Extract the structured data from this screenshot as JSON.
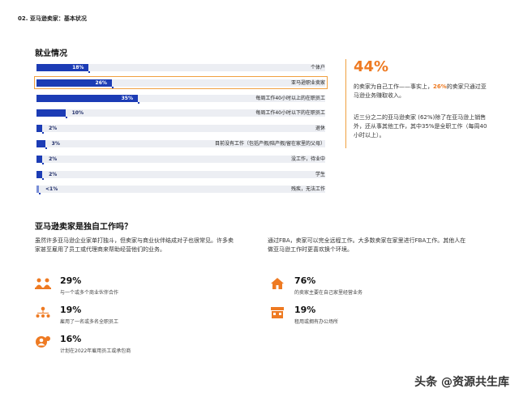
{
  "header": {
    "section": "02. 亚马逊卖家：基本状况"
  },
  "chart": {
    "title": "就业情况"
  },
  "chart_data": {
    "type": "bar",
    "orientation": "horizontal",
    "title": "就业情况",
    "categories": [
      "个体户",
      "亚马逊职业卖家",
      "每周工作40小时以上的在职员工",
      "每周工作40小时以下的在职员工",
      "退休",
      "目前没有工作（包括产假/陪产假/留在家里的父母）",
      "没工作，待业中",
      "学生",
      "残疾，无法工作"
    ],
    "value_labels": [
      "18%",
      "26%",
      "35%",
      "10%",
      "2%",
      "3%",
      "2%",
      "2%",
      "<1%"
    ],
    "values": [
      18,
      26,
      35,
      10,
      2,
      3,
      2,
      2,
      0.5
    ],
    "highlighted": "亚马逊职业卖家",
    "xlim": [
      0,
      100
    ],
    "colors": {
      "bar": "#1c3cb5",
      "track": "#eceef3",
      "highlight_outline": "#f0a040"
    }
  },
  "side": {
    "big_pct": "44%",
    "text1_a": "的卖家为自己工作——事实上，",
    "text1_hl": "26%",
    "text1_b": "的卖家只通过亚马逊业务赚取收入。",
    "text2": "近三分之二的亚马逊卖家 (62%)除了在亚马逊上销售外，还从事其他工作，其中35%是全职工作（每周40小时以上）。"
  },
  "independent": {
    "title": "亚马逊卖家是独自工作吗？",
    "para_left": "虽然许多亚马逊企业家单打独斗，但卖家与商业伙伴结成对子也很常见。许多卖家甚至雇用了员工或代理商来帮助经营他们的业务。",
    "para_right": "通过FBA，卖家可以完全远程工作。大多数卖家在家里进行FBA工作。其他人在做亚马逊工作时更喜欢换个环境。",
    "stats_left": [
      {
        "pct": "29%",
        "desc": "与一个或多个商业伙伴合作",
        "icon": "people-icon"
      },
      {
        "pct": "19%",
        "desc": "雇用了一名或多名全职员工",
        "icon": "org-chart-icon"
      },
      {
        "pct": "16%",
        "desc": "计划在2022年雇用员工或承包商",
        "icon": "hire-icon"
      }
    ],
    "stats_right": [
      {
        "pct": "76%",
        "desc": "的卖家主要在自己家里经营业务",
        "icon": "home-icon"
      },
      {
        "pct": "19%",
        "desc": "租用或拥有办公场所",
        "icon": "office-icon"
      }
    ],
    "icon_color": "#ee7a22"
  },
  "watermark": {
    "text": "头条 @资源共生库"
  }
}
